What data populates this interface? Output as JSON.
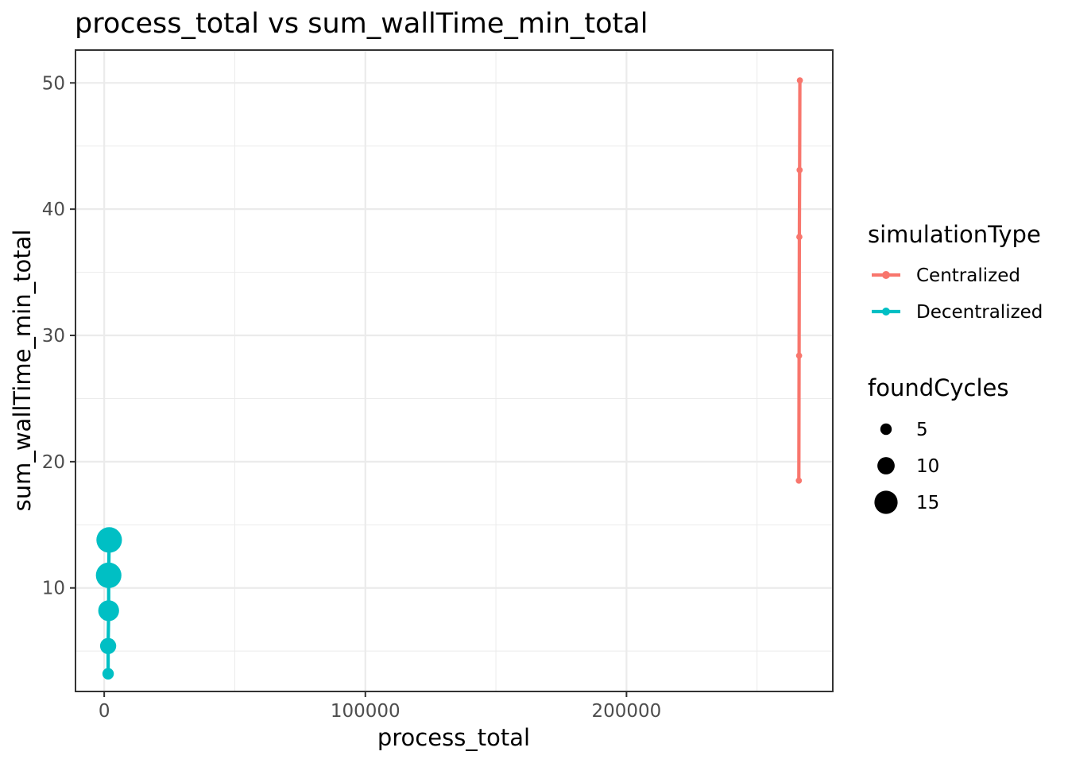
{
  "chart_data": {
    "type": "line",
    "title": "process_total  vs  sum_wallTime_min_total",
    "xlabel": "process_total",
    "ylabel": "sum_wallTime_min_total",
    "xlim": [
      -11000,
      279000
    ],
    "ylim": [
      1.8,
      52.6
    ],
    "x_ticks": [
      0,
      100000,
      200000
    ],
    "x_tick_labels": [
      "0",
      "100000",
      "200000"
    ],
    "x_minor_ticks": [
      50000,
      150000,
      250000
    ],
    "y_ticks": [
      10,
      20,
      30,
      40,
      50
    ],
    "y_tick_labels": [
      "10",
      "20",
      "30",
      "40",
      "50"
    ],
    "y_minor_ticks": [
      5,
      15,
      25,
      35,
      45
    ],
    "grid": true,
    "legend_placement": "right",
    "color_legend": {
      "title": "simulationType",
      "entries": [
        {
          "label": "Centralized",
          "color": "#F8766D"
        },
        {
          "label": "Decentralized",
          "color": "#00BFC4"
        }
      ]
    },
    "size_legend": {
      "title": "foundCycles",
      "entries": [
        {
          "label": "5",
          "value": 5
        },
        {
          "label": "10",
          "value": 10
        },
        {
          "label": "15",
          "value": 15
        }
      ]
    },
    "series": [
      {
        "name": "Centralized",
        "color": "#F8766D",
        "points": [
          {
            "x": 266000,
            "y": 18.5,
            "foundCycles": 0.5
          },
          {
            "x": 266100,
            "y": 28.4,
            "foundCycles": 0.5
          },
          {
            "x": 266200,
            "y": 37.8,
            "foundCycles": 0.5
          },
          {
            "x": 266300,
            "y": 43.1,
            "foundCycles": 0.5
          },
          {
            "x": 266400,
            "y": 50.2,
            "foundCycles": 0.5
          }
        ]
      },
      {
        "name": "Decentralized",
        "color": "#00BFC4",
        "points": [
          {
            "x": 1500,
            "y": 3.2,
            "foundCycles": 5
          },
          {
            "x": 1500,
            "y": 5.4,
            "foundCycles": 9
          },
          {
            "x": 1700,
            "y": 8.2,
            "foundCycles": 13
          },
          {
            "x": 1700,
            "y": 11.0,
            "foundCycles": 17
          },
          {
            "x": 1900,
            "y": 13.8,
            "foundCycles": 17
          }
        ]
      }
    ]
  }
}
